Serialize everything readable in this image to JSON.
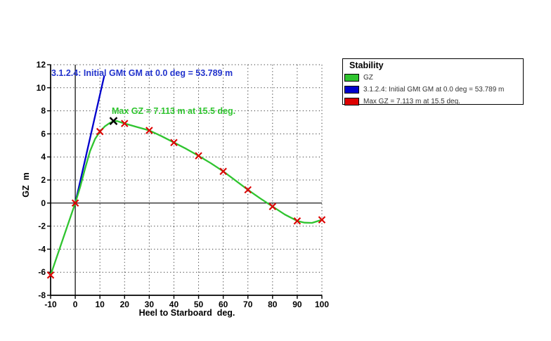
{
  "chart_data": {
    "type": "line",
    "title": "Stability",
    "xlabel": "Heel to Starboard  deg.",
    "ylabel": "GZ  m",
    "xlim": [
      -10,
      100
    ],
    "ylim": [
      -8,
      12
    ],
    "x_ticks": [
      -10,
      0,
      10,
      20,
      30,
      40,
      50,
      60,
      70,
      80,
      90,
      100
    ],
    "y_ticks": [
      -8,
      -6,
      -4,
      -2,
      0,
      2,
      4,
      6,
      8,
      10,
      12
    ],
    "grid": "dotted",
    "series": [
      {
        "name": "GZ",
        "color": "#2fc42f",
        "marker": "x",
        "marker_color": "#dd0000",
        "x": [
          -10,
          0,
          10,
          20,
          30,
          40,
          50,
          60,
          70,
          80,
          90,
          100
        ],
        "y": [
          -6.25,
          0,
          6.2,
          6.9,
          6.3,
          5.25,
          4.1,
          2.75,
          1.15,
          -0.3,
          -1.55,
          -1.45
        ],
        "curve_shape": [
          [
            -10,
            -6.25
          ],
          [
            -5,
            -3.12
          ],
          [
            0,
            0
          ],
          [
            2,
            1.4
          ],
          [
            4,
            3.0
          ],
          [
            6,
            4.5
          ],
          [
            8,
            5.55
          ],
          [
            10,
            6.2
          ],
          [
            12,
            6.65
          ],
          [
            14,
            6.95
          ],
          [
            15.5,
            7.08
          ],
          [
            17,
            7.11
          ],
          [
            18.5,
            7.0
          ],
          [
            20,
            6.9
          ],
          [
            25,
            6.6
          ],
          [
            30,
            6.3
          ],
          [
            35,
            5.8
          ],
          [
            40,
            5.25
          ],
          [
            45,
            4.7
          ],
          [
            50,
            4.1
          ],
          [
            55,
            3.45
          ],
          [
            60,
            2.75
          ],
          [
            65,
            1.95
          ],
          [
            70,
            1.15
          ],
          [
            75,
            0.4
          ],
          [
            80,
            -0.3
          ],
          [
            85,
            -1.0
          ],
          [
            90,
            -1.55
          ],
          [
            93,
            -1.7
          ],
          [
            96,
            -1.72
          ],
          [
            100,
            -1.45
          ]
        ]
      },
      {
        "name": "3.1.2.4: Initial GMt GM at 0.0 deg = 53.789 m",
        "color": "#0000cc",
        "x": [
          0,
          11.77
        ],
        "y": [
          0,
          11.05
        ]
      }
    ],
    "max_point": {
      "x": 15.5,
      "y": 7.113,
      "marker": "x",
      "color": "#000000"
    },
    "annotations": [
      {
        "text": "3.1.2.4: Initial GMt GM at 0.0 deg = 53.789 m",
        "color": "#2233cc"
      },
      {
        "text": "Max GZ = 7.113 m at 15.5 deg.",
        "color": "#2fc42f"
      }
    ]
  },
  "legend": {
    "title": "Stability",
    "items": [
      {
        "swatch_color": "#2fc42f",
        "label": "GZ"
      },
      {
        "swatch_color": "#0000cc",
        "label": "3.1.2.4: Initial GMt GM at 0.0 deg = 53.789 m"
      },
      {
        "swatch_color": "#dd0000",
        "label": "Max GZ = 7.113 m at 15.5 deg."
      }
    ]
  }
}
